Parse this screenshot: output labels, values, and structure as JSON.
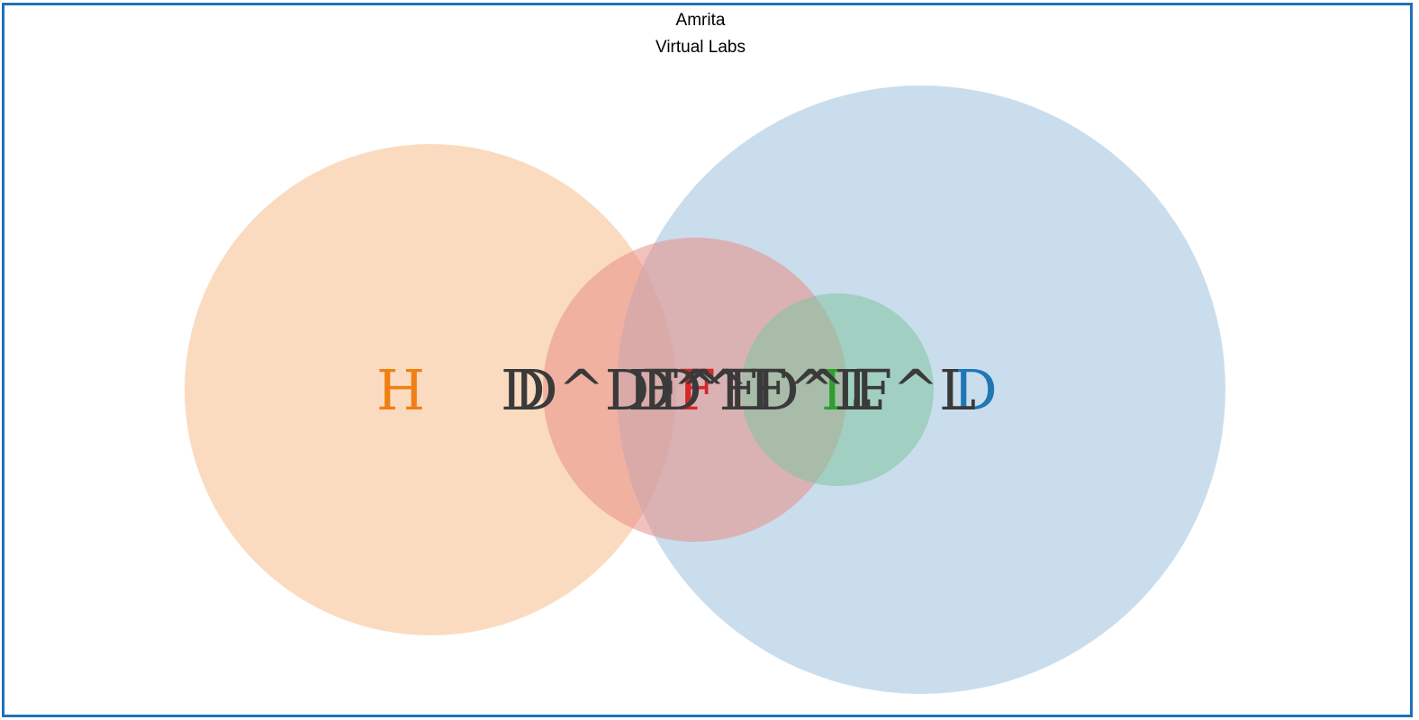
{
  "header": {
    "line1": "Amrita",
    "line2": "Virtual Labs"
  },
  "diagram": {
    "circles": [
      {
        "name": "orange-set",
        "color": "#f7b782"
      },
      {
        "name": "red-set",
        "color": "#e88e86"
      },
      {
        "name": "green-set",
        "color": "#7fc4a0"
      },
      {
        "name": "blue-set",
        "color": "#9fc1dd"
      }
    ],
    "set_labels": [
      {
        "name": "label-h",
        "text": "H",
        "color": "#f07f14"
      },
      {
        "name": "label-f",
        "text": "F",
        "color": "#d62728"
      },
      {
        "name": "label-l",
        "text": "L",
        "color": "#2ca02c"
      },
      {
        "name": "label-d",
        "text": "D",
        "color": "#1f77b4"
      }
    ],
    "overlap_labels": [
      {
        "name": "overlap-label-1",
        "text": "D"
      },
      {
        "name": "overlap-label-2",
        "text": "D^D"
      },
      {
        "name": "overlap-label-3",
        "text": "D^F"
      },
      {
        "name": "overlap-label-4",
        "text": "F^L"
      },
      {
        "name": "overlap-label-5",
        "text": "D^F^L"
      },
      {
        "name": "overlap-label-6",
        "text": "D^L"
      },
      {
        "name": "overlap-label-7",
        "text": "F^L"
      }
    ],
    "overlap_color": "#3a3a3a"
  }
}
